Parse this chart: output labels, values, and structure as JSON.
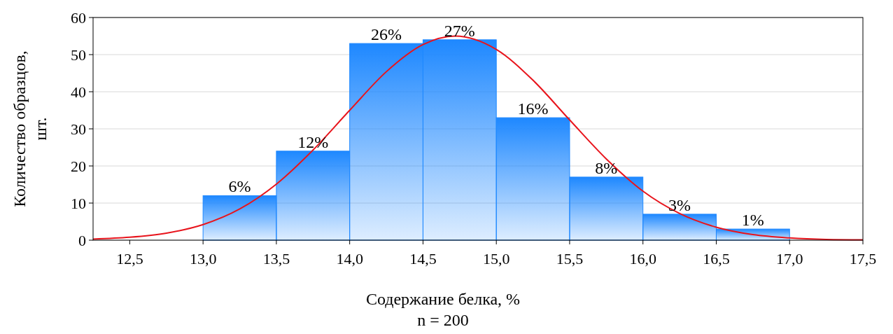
{
  "chart_data": {
    "type": "histogram",
    "xlabel": "Содержание белка, %",
    "ylabel": "Количество образцов, шт.",
    "annotations": [
      {
        "text": "6%",
        "x": 13.25,
        "y": 12
      },
      {
        "text": "12%",
        "x": 13.75,
        "y": 24
      },
      {
        "text": "26%",
        "x": 14.25,
        "y": 53
      },
      {
        "text": "27%",
        "x": 14.75,
        "y": 54
      },
      {
        "text": "16%",
        "x": 15.25,
        "y": 33
      },
      {
        "text": "8%",
        "x": 15.75,
        "y": 17
      },
      {
        "text": "3%",
        "x": 16.25,
        "y": 7
      },
      {
        "text": "1%",
        "x": 16.75,
        "y": 3
      },
      "n = 200"
    ],
    "bins": [
      13.0,
      13.5,
      14.0,
      14.5,
      15.0,
      15.5,
      16.0,
      16.5,
      17.0
    ],
    "values": [
      12,
      24,
      53,
      54,
      33,
      17,
      7,
      3
    ],
    "color": "#1e88ff",
    "series": [
      {
        "type": "line",
        "color": "#e8141c",
        "x": [
          12.25,
          12.5,
          12.75,
          13.0,
          13.25,
          13.5,
          13.75,
          14.0,
          14.25,
          14.5,
          14.72,
          15.0,
          15.25,
          15.5,
          15.75,
          16.0,
          16.25,
          16.5,
          16.75,
          17.0,
          17.25,
          17.5
        ],
        "values": [
          0.3,
          0.8,
          1.9,
          4.2,
          8.4,
          15.1,
          24.3,
          35.0,
          45.4,
          52.7,
          55,
          51.4,
          43.1,
          32.4,
          21.9,
          13.2,
          7.2,
          3.5,
          1.5,
          0.6,
          0.2,
          0.1
        ]
      }
    ],
    "xlim": [
      12.25,
      17.5
    ],
    "xticks": [
      {
        "value": 12.5,
        "label": "12,5"
      },
      {
        "value": 13.0,
        "label": "13,0"
      },
      {
        "value": 13.5,
        "label": "13,5"
      },
      {
        "value": 14.0,
        "label": "14,0"
      },
      {
        "value": 14.5,
        "label": "14,5"
      },
      {
        "value": 15.0,
        "label": "15,0"
      },
      {
        "value": 15.5,
        "label": "15,5"
      },
      {
        "value": 16.0,
        "label": "16,0"
      },
      {
        "value": 16.5,
        "label": "16,5"
      },
      {
        "value": 17.0,
        "label": "17,0"
      },
      {
        "value": 17.5,
        "label": "17,5"
      }
    ],
    "ylim": [
      0,
      60
    ],
    "yticks": [
      0,
      10,
      20,
      30,
      40,
      50,
      60
    ],
    "grid": "y"
  }
}
